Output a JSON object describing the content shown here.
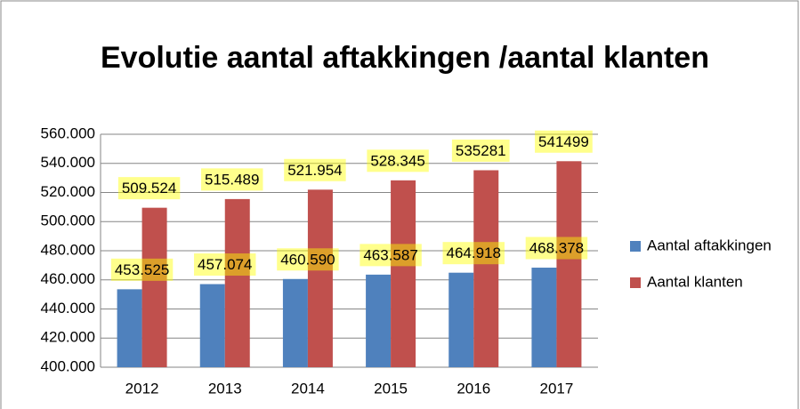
{
  "chart_data": {
    "type": "bar",
    "title": "Evolutie aantal aftakkingen /aantal klanten",
    "categories": [
      "2012",
      "2013",
      "2014",
      "2015",
      "2016",
      "2017"
    ],
    "series": [
      {
        "name": "Aantal aftakkingen",
        "color": "#4f81bd",
        "values": [
          453525,
          457074,
          460590,
          463587,
          464918,
          468378
        ],
        "value_labels": [
          "453.525",
          "457.074",
          "460.590",
          "463.587",
          "464.918",
          "468.378"
        ]
      },
      {
        "name": "Aantal klanten",
        "color": "#c0504d",
        "values": [
          509524,
          515489,
          521954,
          528345,
          535281,
          541499
        ],
        "value_labels": [
          "509.524",
          "515.489",
          "521.954",
          "528.345",
          "535281",
          "541499"
        ]
      }
    ],
    "ylim": [
      400000,
      560000
    ],
    "yticks": [
      {
        "value": 400000,
        "label": "400.000"
      },
      {
        "value": 420000,
        "label": "420.000"
      },
      {
        "value": 440000,
        "label": "440.000"
      },
      {
        "value": 460000,
        "label": "460.000"
      },
      {
        "value": 480000,
        "label": "480.000"
      },
      {
        "value": 500000,
        "label": "500.000"
      },
      {
        "value": 520000,
        "label": "520.000"
      },
      {
        "value": 540000,
        "label": "540.000"
      },
      {
        "value": 560000,
        "label": "560.000"
      }
    ],
    "grid": true,
    "legend": "right"
  }
}
